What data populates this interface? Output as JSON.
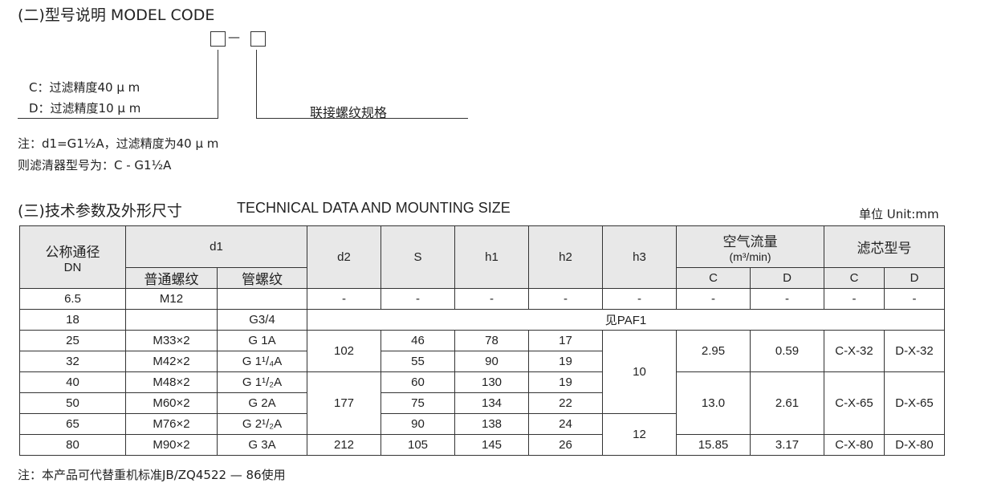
{
  "model_code": {
    "title": "(二)型号说明 MODEL CODE",
    "dash": "—",
    "option_c": "C：过滤精度40 μ m",
    "option_d": "D：过滤精度10 μ m",
    "thread_label": "联接螺纹规格",
    "note_line1": "注：d1=G1½A，过滤精度为40 μ m",
    "note_line2": "则滤清器型号为：C - G1½A"
  },
  "tech": {
    "title": "(三)技术参数及外形尺寸",
    "title_en": "TECHNICAL DATA AND MOUNTING SIZE",
    "unit": "单位 Unit:mm",
    "headers": {
      "dn": "公称通径",
      "dn_en": "DN",
      "d1": "d1",
      "d1_normal": "普通螺纹",
      "d1_pipe": "管螺纹",
      "d2": "d2",
      "s": "S",
      "h1": "h1",
      "h2": "h2",
      "h3": "h3",
      "flow": "空气流量",
      "flow_unit": "(m³/min)",
      "element": "滤芯型号",
      "c": "C",
      "d": "D"
    },
    "rows": [
      {
        "dn": "6.5",
        "normal": "M12",
        "pipe": "",
        "d2": "-",
        "s": "-",
        "h1": "-",
        "h2": "-",
        "h3": "-",
        "flow_c": "-",
        "flow_d": "-",
        "el_c": "-",
        "el_d": "-"
      },
      {
        "dn": "18",
        "normal": "",
        "pipe": "G3/4",
        "see": "见PAF1"
      },
      {
        "dn": "25",
        "normal": "M33×2",
        "pipe": "G 1A",
        "d2": "102",
        "s": "46",
        "h1": "78",
        "h2": "17",
        "h3": "10",
        "flow_c": "2.95",
        "flow_d": "0.59",
        "el_c": "C-X-32",
        "el_d": "D-X-32"
      },
      {
        "dn": "32",
        "normal": "M42×2",
        "pipe": "G 1¹/₄A",
        "s": "55",
        "h1": "90",
        "h2": "19"
      },
      {
        "dn": "40",
        "normal": "M48×2",
        "pipe": "G 1¹/₂A",
        "d2": "177",
        "s": "60",
        "h1": "130",
        "h2": "19",
        "flow_c": "13.0",
        "flow_d": "2.61",
        "el_c": "C-X-65",
        "el_d": "D-X-65"
      },
      {
        "dn": "50",
        "normal": "M60×2",
        "pipe": "G 2A",
        "s": "75",
        "h1": "134",
        "h2": "22"
      },
      {
        "dn": "65",
        "normal": "M76×2",
        "pipe": "G 2¹/₂A",
        "s": "90",
        "h1": "138",
        "h2": "24",
        "h3": "12"
      },
      {
        "dn": "80",
        "normal": "M90×2",
        "pipe": "G 3A",
        "d2": "212",
        "s": "105",
        "h1": "145",
        "h2": "26",
        "flow_c": "15.85",
        "flow_d": "3.17",
        "el_c": "C-X-80",
        "el_d": "D-X-80"
      }
    ],
    "footnote": "注：本产品可代替重机标准JB/ZQ4522 — 86使用"
  }
}
